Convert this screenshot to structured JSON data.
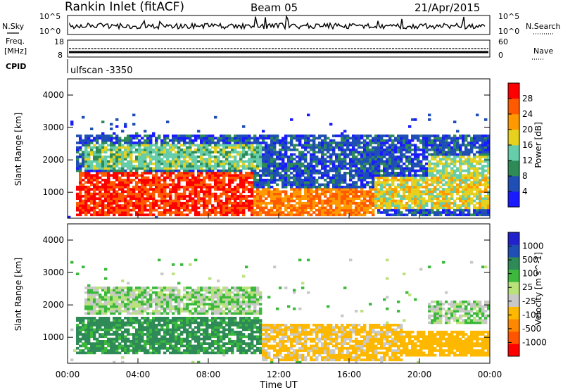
{
  "header": {
    "site_title": "Rankin Inlet (fitACF)",
    "beam": "Beam 05",
    "date": "21/Apr/2015"
  },
  "noise_panel": {
    "left_label": "N.Sky",
    "right_label": "N.Search",
    "left_top_tick": "10^5",
    "left_bottom_tick": "10^0",
    "right_top_tick": "10^5",
    "right_bottom_tick": "10^0"
  },
  "freq_panel": {
    "label_line1": "Freq.",
    "label_line2": "[MHz]",
    "left_top_tick": "18",
    "left_bottom_tick": "8",
    "right_label": "Nave",
    "right_top_tick": "60",
    "right_bottom_tick": "0"
  },
  "cpid": {
    "label": "CPID",
    "value": "ulfscan -3350"
  },
  "colors": {
    "power_scale": [
      "#1a1aff",
      "#1f4fb4",
      "#2e8b57",
      "#66cdaa",
      "#e6d21e",
      "#ff9900",
      "#ff5a00",
      "#ff0000"
    ],
    "velocity_scale": [
      "#ff0000",
      "#ff5500",
      "#ff8800",
      "#ffb800",
      "#c8c8c8",
      "#b9e27a",
      "#3cb93c",
      "#2e8b57",
      "#1f4fb4",
      "#2222cc"
    ]
  },
  "chart_data": [
    {
      "type": "heatmap",
      "name": "power",
      "ylabel": "Slant Range [km]",
      "yticks": [
        "1000",
        "2000",
        "3000",
        "4000"
      ],
      "ylim": [
        200,
        4500
      ],
      "xlim_hours": [
        0,
        24
      ],
      "colorbar_label": "Power [dB]",
      "colorbar_ticks": [
        "4",
        "8",
        "12",
        "16",
        "20",
        "24",
        "28"
      ],
      "colorbar_range": [
        0,
        32
      ],
      "regions": [
        {
          "x": [
            0.5,
            10.5
          ],
          "y": [
            300,
            1600
          ],
          "level": 28
        },
        {
          "x": [
            10.5,
            17.5
          ],
          "y": [
            250,
            1100
          ],
          "level": 24
        },
        {
          "x": [
            17.5,
            24
          ],
          "y": [
            500,
            1500
          ],
          "level": 18
        },
        {
          "x": [
            1,
            11
          ],
          "y": [
            1700,
            2500
          ],
          "level": 14
        },
        {
          "x": [
            20.5,
            24
          ],
          "y": [
            1400,
            2100
          ],
          "level": 16
        },
        {
          "x": [
            0.5,
            24
          ],
          "y": [
            250,
            2800
          ],
          "level": 6
        }
      ]
    },
    {
      "type": "heatmap",
      "name": "velocity",
      "ylabel": "Slant Range [km]",
      "yticks": [
        "1000",
        "2000",
        "3000",
        "4000"
      ],
      "ylim": [
        200,
        4500
      ],
      "xlim_hours": [
        0,
        24
      ],
      "xticks": [
        "00:00",
        "04:00",
        "08:00",
        "12:00",
        "16:00",
        "20:00",
        "00:00"
      ],
      "xlabel": "Time UT",
      "colorbar_label": "Velocity [m s^-1]",
      "colorbar_ticks": [
        "1000",
        "500",
        "100",
        "25",
        "-25",
        "-100",
        "-500",
        "-1000"
      ],
      "regions": [
        {
          "x": [
            1,
            11
          ],
          "y": [
            1700,
            2600
          ],
          "velocity": 0
        },
        {
          "x": [
            20.5,
            24
          ],
          "y": [
            1400,
            2100
          ],
          "velocity": 0
        },
        {
          "x": [
            0.5,
            11
          ],
          "y": [
            500,
            1600
          ],
          "velocity": 150
        },
        {
          "x": [
            11,
            19
          ],
          "y": [
            250,
            1400
          ],
          "velocity": -150
        },
        {
          "x": [
            19,
            24
          ],
          "y": [
            400,
            1200
          ],
          "velocity": -400
        }
      ]
    }
  ]
}
